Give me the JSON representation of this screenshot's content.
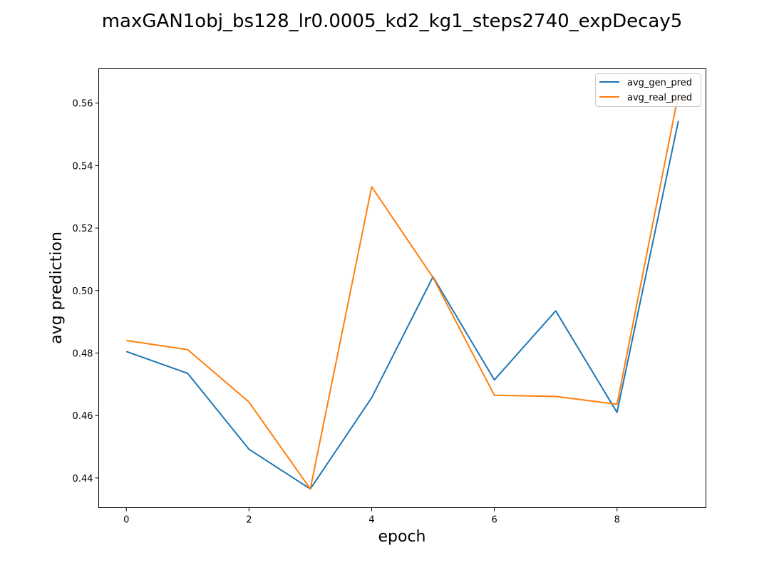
{
  "chart_data": {
    "type": "line",
    "title": "maxGAN1obj_bs128_lr0.0005_kd2_kg1_steps2740_expDecay5",
    "xlabel": "epoch",
    "ylabel": "avg prediction",
    "x": [
      0,
      1,
      2,
      3,
      4,
      5,
      6,
      7,
      8,
      9
    ],
    "xlim": [
      -0.45,
      9.45
    ],
    "ylim": [
      0.4305,
      0.571
    ],
    "xticks": [
      0,
      2,
      4,
      6,
      8
    ],
    "yticks": [
      0.44,
      0.46,
      0.48,
      0.5,
      0.52,
      0.54,
      0.56
    ],
    "xtick_labels": [
      "0",
      "2",
      "4",
      "6",
      "8"
    ],
    "ytick_labels": [
      "0.44",
      "0.46",
      "0.48",
      "0.50",
      "0.52",
      "0.54",
      "0.56"
    ],
    "grid": false,
    "legend_position": "top-right",
    "series": [
      {
        "name": "avg_gen_pred",
        "color": "#1f77b4",
        "values": [
          0.4805,
          0.4735,
          0.4492,
          0.4365,
          0.4657,
          0.5044,
          0.4714,
          0.4935,
          0.461,
          0.5543
        ]
      },
      {
        "name": "avg_real_pred",
        "color": "#ff7f0e",
        "values": [
          0.484,
          0.4811,
          0.4643,
          0.4365,
          0.5332,
          0.5042,
          0.4665,
          0.4661,
          0.4636,
          0.5628
        ]
      }
    ]
  }
}
